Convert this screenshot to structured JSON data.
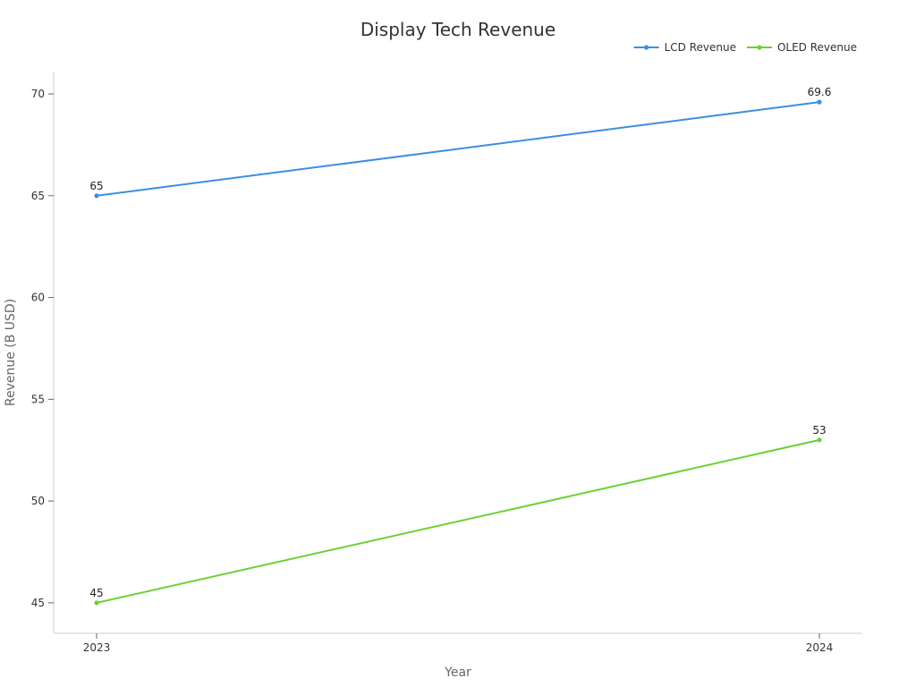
{
  "chart_data": {
    "type": "line",
    "title": "Display Tech Revenue",
    "xlabel": "Year",
    "ylabel": "Revenue (B USD)",
    "categories": [
      "2023",
      "2024"
    ],
    "ylim": [
      43.5,
      71.1
    ],
    "yticks": [
      45,
      50,
      55,
      60,
      65,
      70
    ],
    "grid": false,
    "legend_position": "top-right",
    "series": [
      {
        "name": "LCD Revenue",
        "values": [
          65,
          69.6
        ],
        "color": "#3a8fe0"
      },
      {
        "name": "OLED Revenue",
        "values": [
          45,
          53
        ],
        "color": "#6bd134"
      }
    ]
  }
}
